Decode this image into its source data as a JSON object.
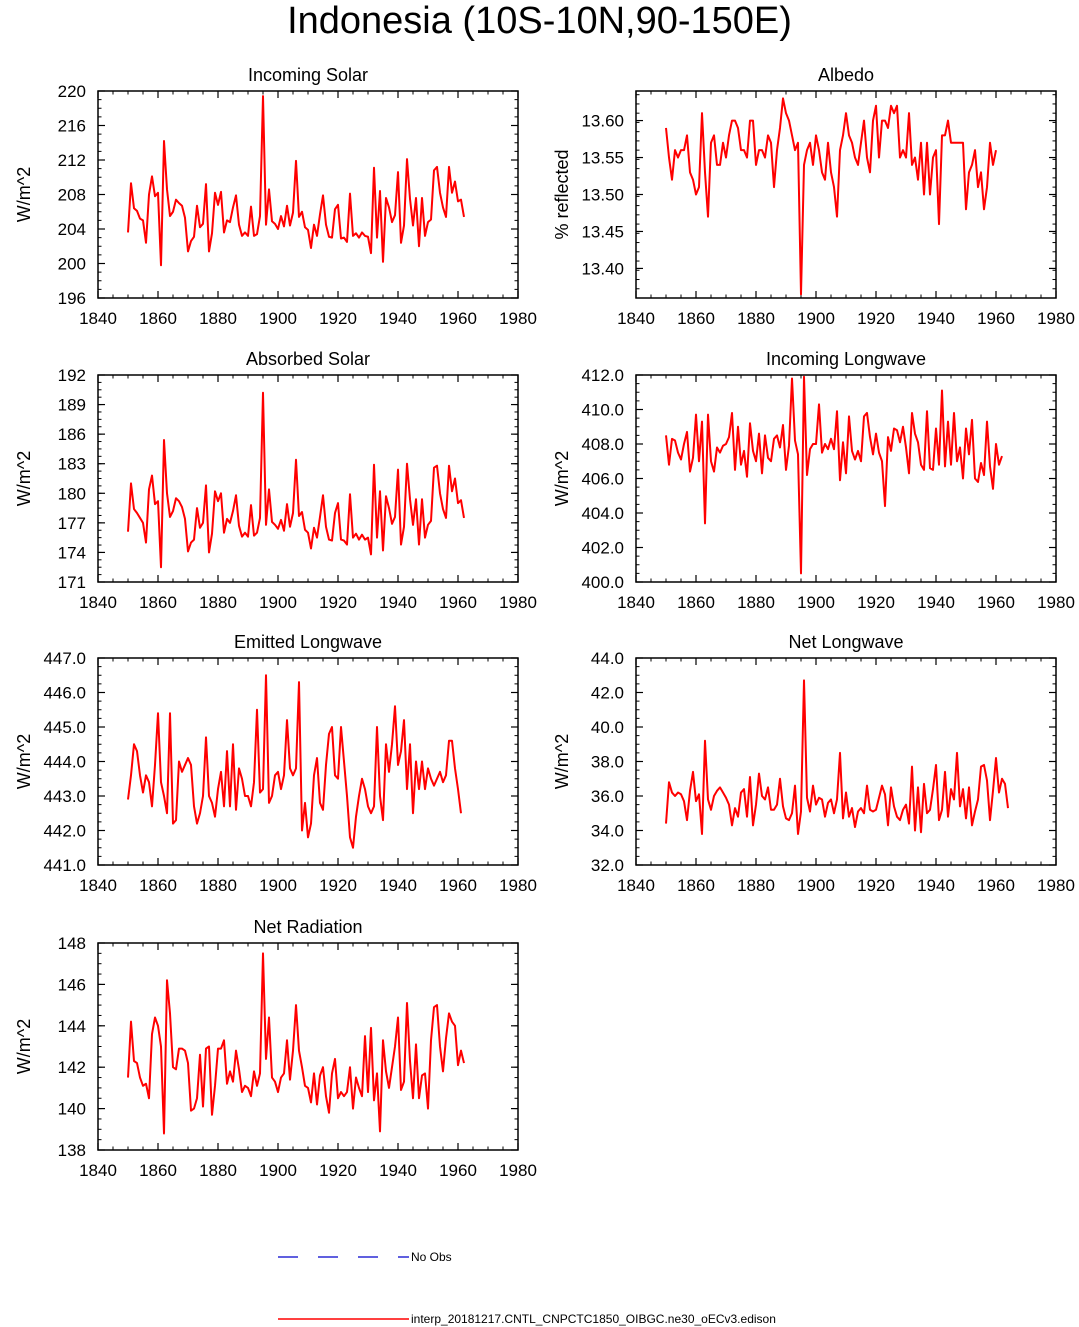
{
  "title": "Indonesia (10S-10N,90-150E)",
  "series_color": "#ff0000",
  "obs_color": "#0000cc",
  "legend": {
    "obs_label": "No Obs",
    "model_label": "interp_20181217.CNTL_CNPCTC1850_OIBGC.ne30_oECv3.edison"
  },
  "chart_data": [
    {
      "type": "line",
      "title": "Incoming Solar",
      "ylabel": "W/m^2",
      "xlabel": "",
      "xlim": [
        1840,
        1980
      ],
      "ylim": [
        196,
        220
      ],
      "xticks": [
        "1840",
        "1860",
        "1880",
        "1900",
        "1920",
        "1940",
        "1960",
        "1980"
      ],
      "yticks": [
        "196",
        "200",
        "204",
        "208",
        "212",
        "216",
        "220"
      ],
      "x_start": 1850,
      "series": [
        {
          "name": "model",
          "values": [
            203.6,
            209.3,
            206.4,
            206.1,
            205.2,
            205.0,
            202.4,
            208.0,
            210.1,
            207.8,
            208.2,
            199.8,
            214.2,
            208.6,
            205.5,
            206.0,
            207.4,
            207.0,
            206.7,
            205.3,
            201.4,
            202.6,
            203.1,
            206.7,
            204.2,
            204.6,
            209.2,
            201.4,
            203.5,
            208.2,
            206.8,
            208.3,
            203.6,
            205.0,
            204.8,
            206.5,
            207.9,
            204.5,
            203.2,
            203.6,
            203.2,
            206.6,
            203.2,
            203.4,
            205.5,
            219.4,
            204.5,
            208.6,
            204.9,
            204.6,
            204.0,
            205.5,
            204.3,
            206.7,
            204.4,
            205.9,
            211.9,
            205.4,
            206.0,
            204.2,
            203.9,
            201.8,
            204.5,
            203.2,
            205.7,
            207.9,
            204.5,
            203.1,
            203.0,
            206.3,
            206.8,
            202.9,
            203.0,
            202.5,
            208.1,
            203.2,
            203.5,
            203.0,
            203.6,
            203.2,
            203.1,
            201.2,
            211.1,
            203.0,
            208.4,
            200.2,
            207.6,
            206.5,
            204.8,
            205.6,
            210.6,
            202.4,
            204.4,
            212.1,
            207.5,
            204.4,
            207.6,
            202.0,
            207.6,
            203.2,
            204.8,
            205.1,
            210.8,
            211.2,
            208.2,
            206.5,
            205.4,
            211.2,
            208.2,
            209.5,
            207.2,
            207.4,
            205.4
          ]
        }
      ]
    },
    {
      "type": "line",
      "title": "Albedo",
      "ylabel": "% reflected",
      "xlabel": "",
      "xlim": [
        1840,
        1980
      ],
      "ylim": [
        13.36,
        13.64
      ],
      "xticks": [
        "1840",
        "1860",
        "1880",
        "1900",
        "1920",
        "1940",
        "1960",
        "1980"
      ],
      "yticks": [
        "13.40",
        "13.45",
        "13.50",
        "13.55",
        "13.60"
      ],
      "x_start": 1850,
      "series": [
        {
          "name": "model",
          "values": [
            13.59,
            13.55,
            13.52,
            13.56,
            13.55,
            13.56,
            13.56,
            13.58,
            13.53,
            13.52,
            13.5,
            13.51,
            13.61,
            13.53,
            13.47,
            13.57,
            13.58,
            13.54,
            13.54,
            13.57,
            13.55,
            13.58,
            13.6,
            13.6,
            13.59,
            13.56,
            13.56,
            13.55,
            13.6,
            13.6,
            13.54,
            13.56,
            13.56,
            13.55,
            13.58,
            13.57,
            13.51,
            13.56,
            13.59,
            13.63,
            13.61,
            13.6,
            13.58,
            13.56,
            13.57,
            13.365,
            13.54,
            13.56,
            13.57,
            13.54,
            13.58,
            13.56,
            13.53,
            13.52,
            13.57,
            13.53,
            13.51,
            13.47,
            13.56,
            13.58,
            13.61,
            13.58,
            13.57,
            13.55,
            13.54,
            13.57,
            13.6,
            13.55,
            13.53,
            13.6,
            13.62,
            13.55,
            13.6,
            13.6,
            13.59,
            13.62,
            13.61,
            13.62,
            13.55,
            13.56,
            13.55,
            13.61,
            13.54,
            13.55,
            13.52,
            13.57,
            13.5,
            13.57,
            13.5,
            13.55,
            13.56,
            13.46,
            13.58,
            13.58,
            13.6,
            13.57,
            13.57,
            13.57,
            13.57,
            13.57,
            13.48,
            13.53,
            13.54,
            13.56,
            13.51,
            13.53,
            13.48,
            13.51,
            13.57,
            13.54,
            13.56
          ]
        }
      ]
    },
    {
      "type": "line",
      "title": "Absorbed Solar",
      "ylabel": "W/m^2",
      "xlabel": "",
      "xlim": [
        1840,
        1980
      ],
      "ylim": [
        171,
        192
      ],
      "xticks": [
        "1840",
        "1860",
        "1880",
        "1900",
        "1920",
        "1940",
        "1960",
        "1980"
      ],
      "yticks": [
        "171",
        "174",
        "177",
        "180",
        "183",
        "186",
        "189",
        "192"
      ],
      "x_start": 1850,
      "series": [
        {
          "name": "model",
          "values": [
            176.1,
            181.0,
            178.4,
            178.0,
            177.5,
            177.0,
            175.0,
            180.4,
            181.8,
            178.9,
            179.2,
            172.5,
            185.4,
            180.0,
            177.6,
            178.2,
            179.5,
            179.2,
            178.6,
            177.4,
            174.1,
            175.0,
            175.3,
            178.5,
            176.5,
            177.0,
            180.8,
            174.0,
            175.9,
            180.2,
            179.2,
            180.0,
            176.0,
            177.4,
            177.0,
            178.2,
            179.8,
            176.7,
            175.6,
            176.0,
            175.6,
            178.8,
            175.7,
            176.0,
            177.5,
            190.2,
            176.8,
            180.4,
            177.1,
            176.8,
            176.4,
            177.3,
            176.2,
            178.9,
            176.6,
            178.0,
            183.4,
            177.7,
            178.1,
            176.3,
            176.0,
            174.4,
            176.5,
            175.5,
            177.6,
            179.8,
            176.6,
            175.3,
            175.2,
            178.0,
            179.0,
            175.3,
            175.2,
            174.8,
            179.9,
            175.5,
            175.9,
            175.3,
            175.8,
            175.3,
            175.5,
            173.8,
            182.9,
            175.5,
            180.2,
            174.2,
            179.7,
            178.5,
            176.9,
            177.6,
            182.4,
            174.8,
            176.6,
            183.0,
            179.4,
            176.8,
            179.4,
            174.8,
            179.4,
            175.5,
            176.8,
            177.2,
            182.6,
            182.8,
            180.0,
            178.4,
            177.5,
            182.8,
            180.2,
            181.5,
            179.0,
            179.3,
            177.5
          ]
        }
      ]
    },
    {
      "type": "line",
      "title": "Incoming Longwave",
      "ylabel": "W/m^2",
      "xlabel": "",
      "xlim": [
        1840,
        1980
      ],
      "ylim": [
        400,
        412
      ],
      "xticks": [
        "1840",
        "1860",
        "1880",
        "1900",
        "1920",
        "1940",
        "1960",
        "1980"
      ],
      "yticks": [
        "400.0",
        "402.0",
        "404.0",
        "406.0",
        "408.0",
        "410.0",
        "412.0"
      ],
      "x_start": 1850,
      "series": [
        {
          "name": "model",
          "values": [
            408.5,
            406.8,
            408.3,
            408.2,
            407.5,
            407.1,
            408.0,
            408.7,
            406.4,
            407.2,
            409.7,
            407.0,
            409.3,
            403.4,
            409.7,
            407.0,
            406.4,
            407.8,
            407.5,
            407.9,
            408.0,
            408.4,
            409.8,
            406.5,
            409.0,
            406.8,
            407.6,
            406.1,
            409.2,
            407.6,
            407.0,
            408.6,
            406.3,
            408.5,
            407.2,
            407.0,
            408.3,
            408.5,
            407.8,
            409.1,
            406.5,
            407.9,
            411.8,
            408.2,
            407.4,
            400.5,
            411.9,
            406.2,
            407.7,
            408.0,
            408.0,
            410.3,
            407.5,
            408.0,
            407.7,
            408.3,
            407.7,
            409.9,
            405.9,
            408.1,
            406.3,
            409.6,
            407.6,
            407.1,
            407.6,
            407.0,
            409.6,
            409.8,
            408.4,
            407.4,
            408.6,
            407.5,
            407.0,
            404.4,
            408.4,
            407.6,
            408.9,
            408.8,
            408.1,
            409.0,
            407.8,
            406.3,
            409.8,
            408.6,
            408.1,
            406.8,
            406.5,
            409.9,
            406.6,
            406.5,
            408.9,
            406.8,
            411.1,
            406.7,
            409.3,
            406.8,
            409.8,
            407.0,
            407.8,
            406.0,
            408.9,
            407.4,
            409.4,
            406.0,
            405.8,
            406.9,
            406.2,
            409.3,
            406.7,
            405.4,
            408.0,
            406.8,
            407.3
          ]
        }
      ]
    },
    {
      "type": "line",
      "title": "Emitted Longwave",
      "ylabel": "W/m^2",
      "xlabel": "",
      "xlim": [
        1840,
        1980
      ],
      "ylim": [
        441,
        447
      ],
      "xticks": [
        "1840",
        "1860",
        "1880",
        "1900",
        "1920",
        "1940",
        "1960",
        "1980"
      ],
      "yticks": [
        "441.0",
        "442.0",
        "443.0",
        "444.0",
        "445.0",
        "446.0",
        "447.0"
      ],
      "x_start": 1850,
      "series": [
        {
          "name": "model",
          "values": [
            442.9,
            443.6,
            444.5,
            444.3,
            443.6,
            443.1,
            443.6,
            443.4,
            442.7,
            443.9,
            445.4,
            443.4,
            443.0,
            442.5,
            445.4,
            442.2,
            442.3,
            444.0,
            443.7,
            443.9,
            444.1,
            443.9,
            442.7,
            442.2,
            442.5,
            443.0,
            444.7,
            443.0,
            442.8,
            442.4,
            443.2,
            443.7,
            442.7,
            444.3,
            442.7,
            444.5,
            442.6,
            443.8,
            443.5,
            443.0,
            443.0,
            442.7,
            443.4,
            445.5,
            443.1,
            443.2,
            446.5,
            442.8,
            443.0,
            443.6,
            443.7,
            443.2,
            443.6,
            445.2,
            443.8,
            443.6,
            443.8,
            446.3,
            442.0,
            442.8,
            441.8,
            442.2,
            443.6,
            444.1,
            442.8,
            442.6,
            443.9,
            444.8,
            445.0,
            443.6,
            443.5,
            445.0,
            444.0,
            443.0,
            441.8,
            441.5,
            442.4,
            443.0,
            443.5,
            443.2,
            442.7,
            442.5,
            442.7,
            445.0,
            443.0,
            442.3,
            444.5,
            443.7,
            444.5,
            445.6,
            443.9,
            444.3,
            445.2,
            443.2,
            444.5,
            442.5,
            444.0,
            443.2,
            444.0,
            443.2,
            443.8,
            443.5,
            443.3,
            443.5,
            443.7,
            443.4,
            443.6,
            444.6,
            444.6,
            443.8,
            443.2,
            442.5
          ]
        }
      ]
    },
    {
      "type": "line",
      "title": "Net Longwave",
      "ylabel": "W/m^2",
      "xlabel": "",
      "xlim": [
        1840,
        1980
      ],
      "ylim": [
        32,
        44
      ],
      "xticks": [
        "1840",
        "1860",
        "1880",
        "1900",
        "1920",
        "1940",
        "1960",
        "1980"
      ],
      "yticks": [
        "32.0",
        "34.0",
        "36.0",
        "38.0",
        "40.0",
        "42.0",
        "44.0"
      ],
      "x_start": 1850,
      "series": [
        {
          "name": "model",
          "values": [
            34.4,
            36.8,
            36.2,
            36.0,
            36.2,
            36.1,
            35.7,
            34.6,
            36.3,
            37.4,
            35.7,
            36.1,
            33.8,
            39.2,
            35.8,
            35.2,
            36.0,
            36.3,
            36.5,
            36.2,
            35.9,
            35.5,
            34.3,
            35.3,
            34.8,
            36.2,
            36.4,
            34.8,
            37.1,
            34.3,
            35.5,
            37.3,
            36.0,
            35.8,
            36.5,
            35.2,
            35.2,
            35.5,
            37.0,
            35.4,
            34.7,
            34.6,
            35.0,
            36.6,
            33.8,
            35.1,
            42.7,
            35.9,
            35.1,
            36.6,
            35.5,
            35.9,
            35.8,
            34.8,
            35.6,
            35.8,
            35.0,
            35.8,
            38.5,
            34.7,
            36.2,
            34.8,
            35.3,
            34.2,
            35.1,
            35.3,
            35.0,
            36.6,
            35.2,
            35.1,
            35.2,
            35.9,
            36.6,
            36.1,
            34.3,
            36.5,
            35.4,
            34.8,
            34.6,
            35.2,
            35.5,
            34.4,
            37.7,
            34.0,
            36.5,
            33.9,
            36.7,
            35.0,
            35.2,
            36.4,
            37.8,
            34.6,
            35.2,
            37.4,
            34.8,
            36.4,
            35.8,
            38.5,
            35.4,
            36.4,
            34.7,
            36.5,
            34.3,
            35.1,
            35.8,
            37.7,
            37.8,
            36.9,
            34.6,
            36.3,
            38.2,
            36.2,
            37.0,
            36.7,
            35.3
          ]
        }
      ]
    },
    {
      "type": "line",
      "title": "Net Radiation",
      "ylabel": "W/m^2",
      "xlabel": "",
      "xlim": [
        1840,
        1980
      ],
      "ylim": [
        138,
        148
      ],
      "xticks": [
        "1840",
        "1860",
        "1880",
        "1900",
        "1920",
        "1940",
        "1960",
        "1980"
      ],
      "yticks": [
        "138",
        "140",
        "142",
        "144",
        "146",
        "148"
      ],
      "x_start": 1850,
      "series": [
        {
          "name": "model",
          "values": [
            141.5,
            144.2,
            142.3,
            142.2,
            141.5,
            141.1,
            141.2,
            140.5,
            143.6,
            144.4,
            144.0,
            143.0,
            138.8,
            146.2,
            144.6,
            142.0,
            141.9,
            142.9,
            142.9,
            142.8,
            142.2,
            139.9,
            140.0,
            140.5,
            142.6,
            140.1,
            142.9,
            143.0,
            139.7,
            141.1,
            142.9,
            142.9,
            143.3,
            141.2,
            141.8,
            141.3,
            142.8,
            141.9,
            140.8,
            141.1,
            141.0,
            140.6,
            141.8,
            141.1,
            141.7,
            147.5,
            142.4,
            144.4,
            141.5,
            141.3,
            140.8,
            141.5,
            141.7,
            143.3,
            141.4,
            142.8,
            145.0,
            142.8,
            142.0,
            141.1,
            141.0,
            140.3,
            141.7,
            140.2,
            141.6,
            142.0,
            140.6,
            139.8,
            141.7,
            142.4,
            140.5,
            140.8,
            140.6,
            140.8,
            142.0,
            140.0,
            141.5,
            141.0,
            140.6,
            143.5,
            140.8,
            143.9,
            140.4,
            141.7,
            138.9,
            143.3,
            141.8,
            141.0,
            142.0,
            143.0,
            144.4,
            140.9,
            141.3,
            145.1,
            142.3,
            140.5,
            143.1,
            140.5,
            141.6,
            141.7,
            140.0,
            143.3,
            144.9,
            145.0,
            143.0,
            141.8,
            143.4,
            144.6,
            144.2,
            144.0,
            142.1,
            142.8,
            142.2
          ]
        }
      ]
    }
  ]
}
